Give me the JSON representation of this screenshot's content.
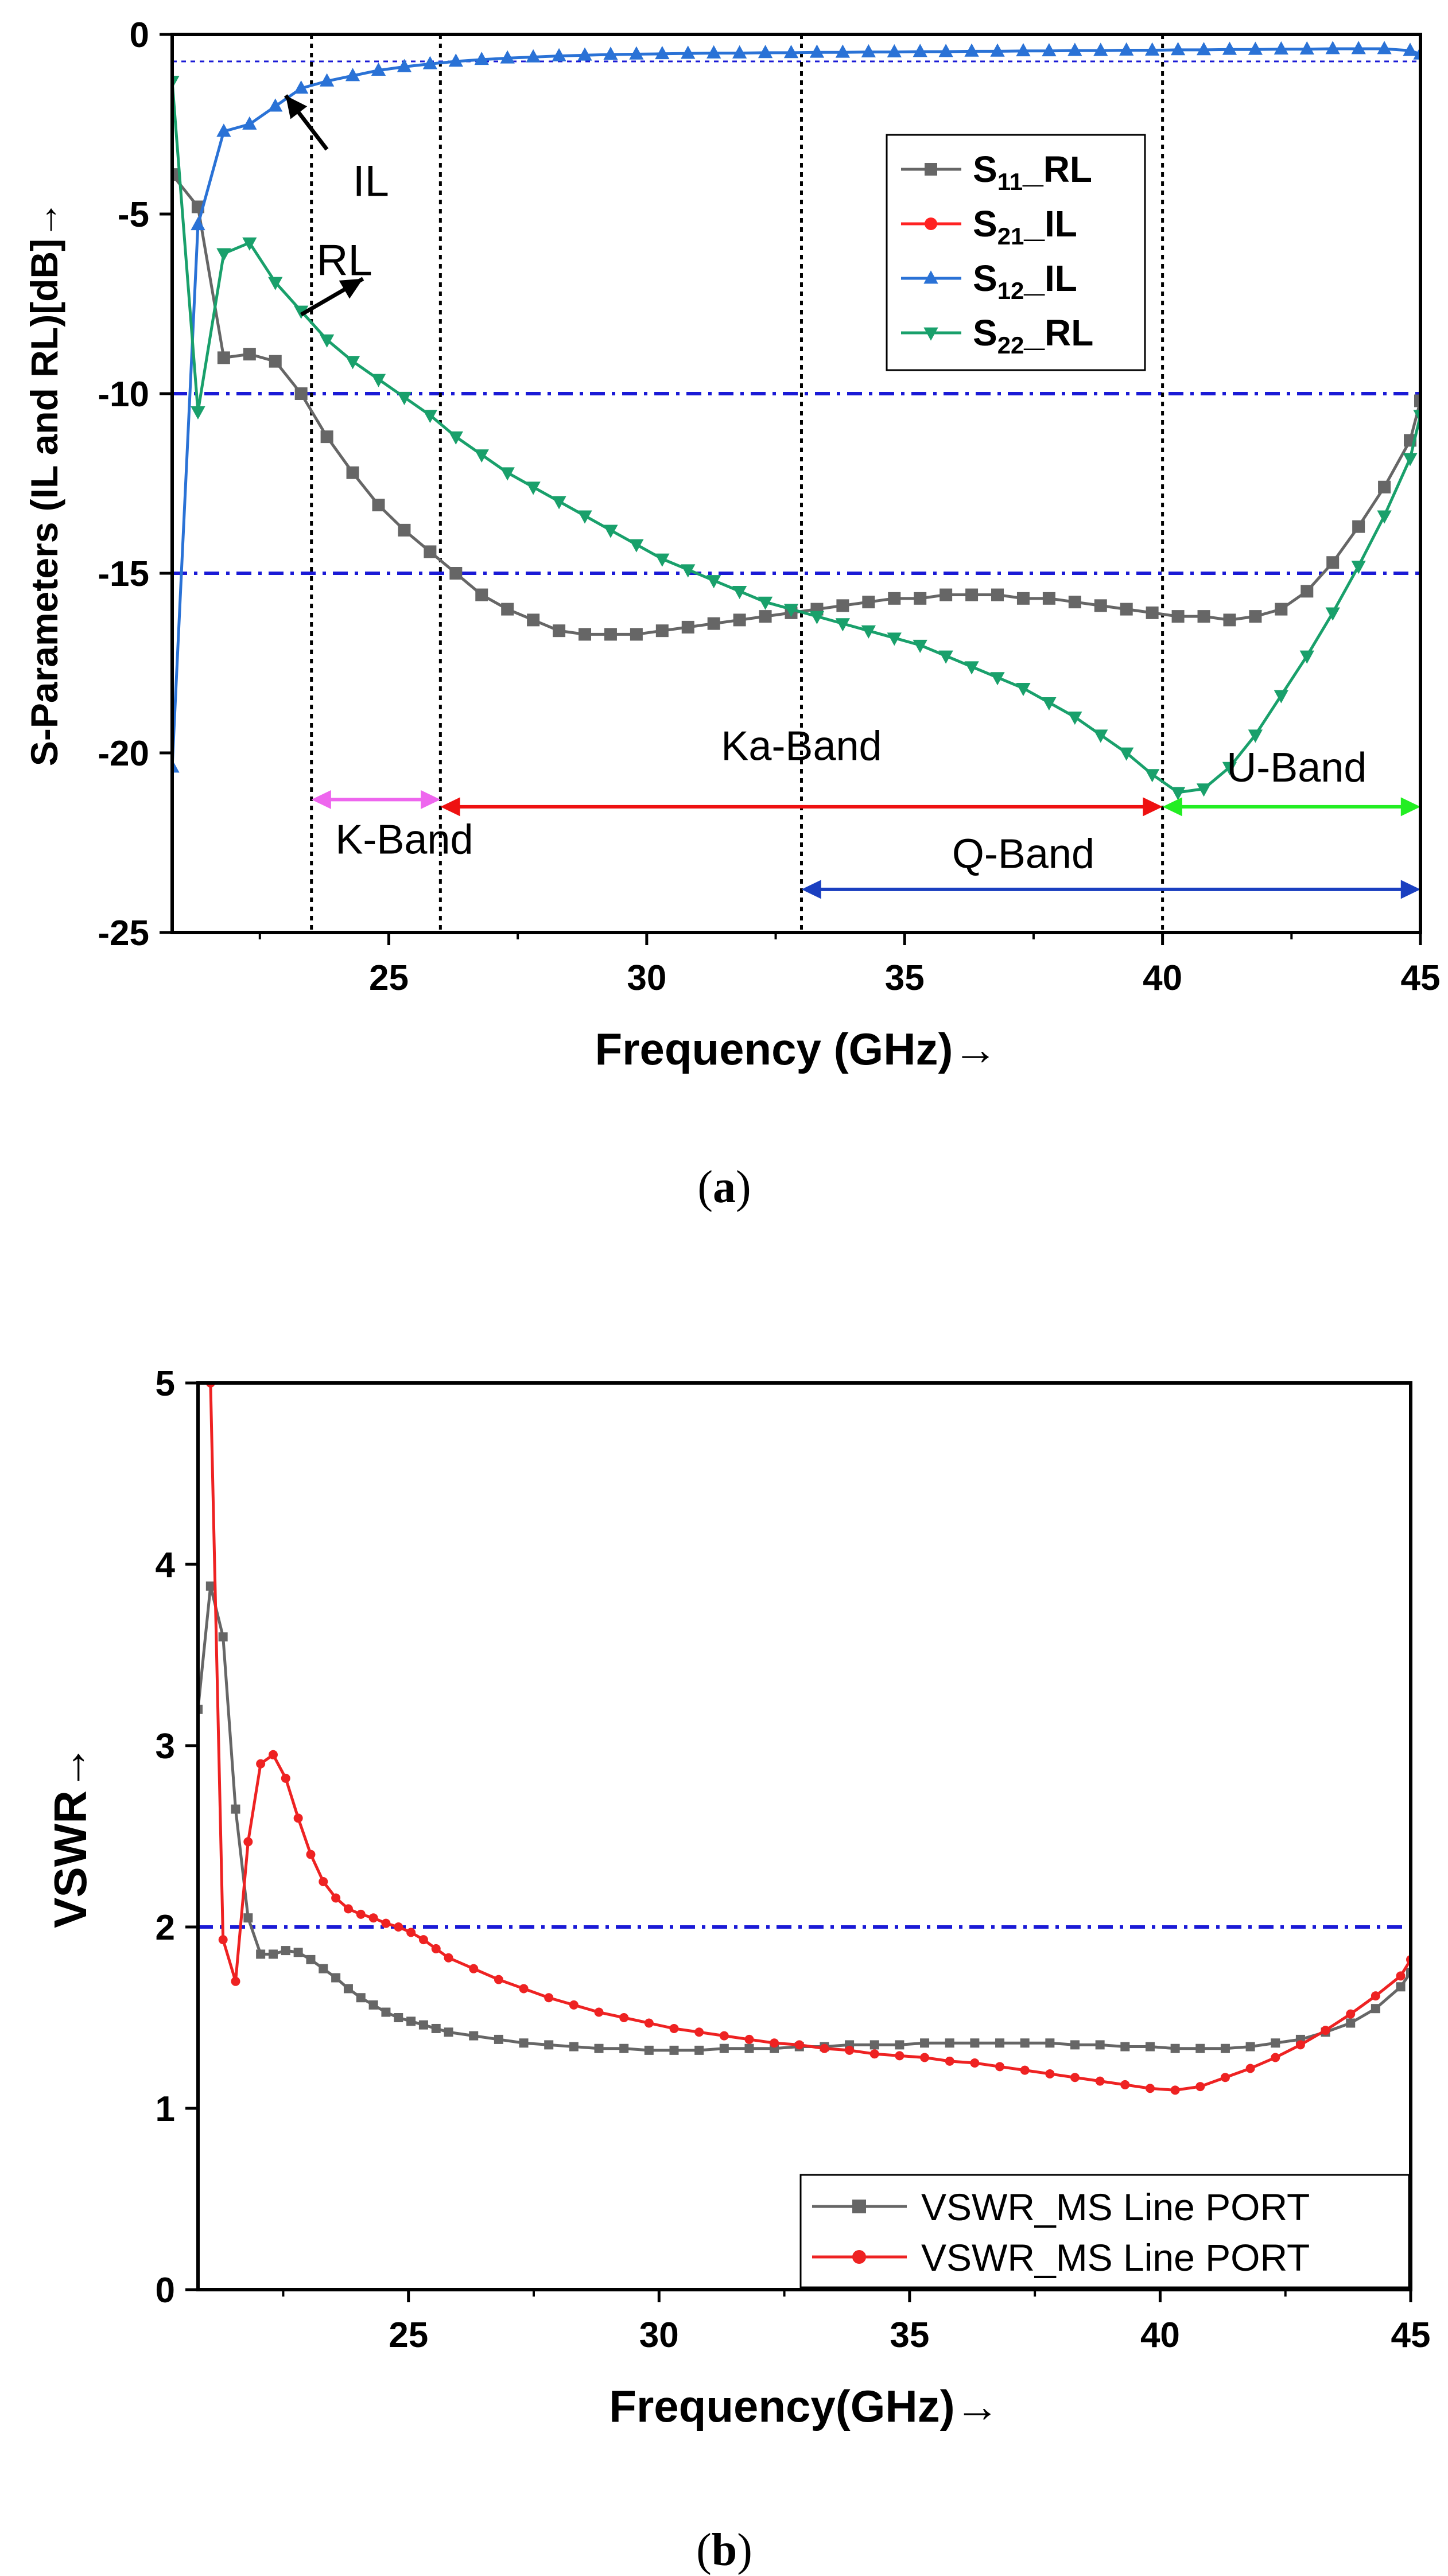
{
  "chart_data": [
    {
      "id": "a",
      "type": "line",
      "caption_open": "(",
      "caption": "a",
      "caption_close": ")",
      "xlabel": "Frequency (GHz)→",
      "ylabel": "S-Parameters (IL and RL)[dB]→",
      "xlim": [
        20.8,
        45
      ],
      "ylim": [
        -25,
        0
      ],
      "xticks": [
        25,
        30,
        35,
        40,
        45
      ],
      "yticks": [
        0,
        -5,
        -10,
        -15,
        -20,
        -25
      ],
      "xtick_labels": [
        "25",
        "30",
        "35",
        "40",
        "45"
      ],
      "ytick_labels": [
        "0",
        "-5",
        "-10",
        "-15",
        "-20",
        "-25"
      ],
      "series": [
        {
          "name": "S11_RL",
          "label_main": "S",
          "label_sub": "11",
          "label_tail": "_RL",
          "color": "#666666",
          "marker": "square",
          "x": [
            20.8,
            21.3,
            21.8,
            22.3,
            22.8,
            23.3,
            23.8,
            24.3,
            24.8,
            25.3,
            25.8,
            26.3,
            26.8,
            27.3,
            27.8,
            28.3,
            28.8,
            29.3,
            29.8,
            30.3,
            30.8,
            31.3,
            31.8,
            32.3,
            32.8,
            33.3,
            33.8,
            34.3,
            34.8,
            35.3,
            35.8,
            36.3,
            36.8,
            37.3,
            37.8,
            38.3,
            38.8,
            39.3,
            39.8,
            40.3,
            40.8,
            41.3,
            41.8,
            42.3,
            42.8,
            43.3,
            43.8,
            44.3,
            44.8,
            45.0
          ],
          "y": [
            -3.9,
            -4.8,
            -9.0,
            -8.9,
            -9.1,
            -10.0,
            -11.2,
            -12.2,
            -13.1,
            -13.8,
            -14.4,
            -15.0,
            -15.6,
            -16.0,
            -16.3,
            -16.6,
            -16.7,
            -16.7,
            -16.7,
            -16.6,
            -16.5,
            -16.4,
            -16.3,
            -16.2,
            -16.1,
            -16.0,
            -15.9,
            -15.8,
            -15.7,
            -15.7,
            -15.6,
            -15.6,
            -15.6,
            -15.7,
            -15.7,
            -15.8,
            -15.9,
            -16.0,
            -16.1,
            -16.2,
            -16.2,
            -16.3,
            -16.2,
            -16.0,
            -15.5,
            -14.7,
            -13.7,
            -12.6,
            -11.3,
            -10.2
          ]
        },
        {
          "name": "S21_IL",
          "label_main": "S",
          "label_sub": "21",
          "label_tail": "_IL",
          "color": "#ff2222",
          "marker": "circle",
          "x": [],
          "y": []
        },
        {
          "name": "S12_IL",
          "label_main": "S",
          "label_sub": "12",
          "label_tail": "_IL",
          "color": "#2a72d6",
          "marker": "triangle-up",
          "x": [
            20.8,
            21.3,
            21.8,
            22.3,
            22.8,
            23.3,
            23.8,
            24.3,
            24.8,
            25.3,
            25.8,
            26.3,
            26.8,
            27.3,
            27.8,
            28.3,
            28.8,
            29.3,
            29.8,
            30.3,
            30.8,
            31.3,
            31.8,
            32.3,
            32.8,
            33.3,
            33.8,
            34.3,
            34.8,
            35.3,
            35.8,
            36.3,
            36.8,
            37.3,
            37.8,
            38.3,
            38.8,
            39.3,
            39.8,
            40.3,
            40.8,
            41.3,
            41.8,
            42.3,
            42.8,
            43.3,
            43.8,
            44.3,
            44.8,
            45.0
          ],
          "y": [
            -20.4,
            -5.3,
            -2.7,
            -2.5,
            -2.0,
            -1.5,
            -1.3,
            -1.15,
            -1.0,
            -0.9,
            -0.82,
            -0.75,
            -0.7,
            -0.66,
            -0.63,
            -0.6,
            -0.58,
            -0.56,
            -0.55,
            -0.54,
            -0.53,
            -0.52,
            -0.52,
            -0.51,
            -0.51,
            -0.5,
            -0.5,
            -0.49,
            -0.49,
            -0.48,
            -0.48,
            -0.47,
            -0.47,
            -0.46,
            -0.46,
            -0.45,
            -0.45,
            -0.44,
            -0.44,
            -0.43,
            -0.43,
            -0.42,
            -0.42,
            -0.41,
            -0.41,
            -0.4,
            -0.4,
            -0.4,
            -0.45,
            -0.55
          ]
        },
        {
          "name": "S22_RL",
          "label_main": "S",
          "label_sub": "22",
          "label_tail": "_RL",
          "color": "#19a06b",
          "marker": "triangle-down",
          "x": [
            20.8,
            21.3,
            21.8,
            22.3,
            22.8,
            23.3,
            23.8,
            24.3,
            24.8,
            25.3,
            25.8,
            26.3,
            26.8,
            27.3,
            27.8,
            28.3,
            28.8,
            29.3,
            29.8,
            30.3,
            30.8,
            31.3,
            31.8,
            32.3,
            32.8,
            33.3,
            33.8,
            34.3,
            34.8,
            35.3,
            35.8,
            36.3,
            36.8,
            37.3,
            37.8,
            38.3,
            38.8,
            39.3,
            39.8,
            40.3,
            40.8,
            41.3,
            41.8,
            42.3,
            42.8,
            43.3,
            43.8,
            44.3,
            44.8,
            45.0
          ],
          "y": [
            -1.3,
            -10.5,
            -6.1,
            -5.8,
            -6.9,
            -7.7,
            -8.5,
            -9.1,
            -9.6,
            -10.1,
            -10.6,
            -11.2,
            -11.7,
            -12.2,
            -12.6,
            -13.0,
            -13.4,
            -13.8,
            -14.2,
            -14.6,
            -14.9,
            -15.2,
            -15.5,
            -15.8,
            -16.0,
            -16.2,
            -16.4,
            -16.6,
            -16.8,
            -17.0,
            -17.3,
            -17.6,
            -17.9,
            -18.2,
            -18.6,
            -19.0,
            -19.5,
            -20.0,
            -20.6,
            -21.1,
            -21.0,
            -20.4,
            -19.5,
            -18.4,
            -17.3,
            -16.1,
            -14.8,
            -13.4,
            -11.8,
            -10.6
          ]
        }
      ],
      "reference_lines": [
        {
          "y": -10,
          "color": "#1a1ad6",
          "style": "dash-dot"
        },
        {
          "y": -15,
          "color": "#1a1ad6",
          "style": "dash-dot"
        },
        {
          "y": -0.75,
          "color": "#1a1ad6",
          "style": "dotted"
        }
      ],
      "vertical_lines": [
        {
          "x": 23.5,
          "color": "#000000",
          "style": "dotted"
        },
        {
          "x": 26,
          "color": "#000000",
          "style": "dotted"
        },
        {
          "x": 33,
          "color": "#000000",
          "style": "dotted"
        },
        {
          "x": 40,
          "color": "#000000",
          "style": "dotted"
        }
      ],
      "bands": [
        {
          "name": "K-Band",
          "from": 23.5,
          "to": 26,
          "y": -21.3,
          "color": "#ee66ee",
          "label_x": 25.3,
          "label_y": -22.8
        },
        {
          "name": "Ka-Band",
          "from": 26,
          "to": 40,
          "y": -21.5,
          "color": "#ee1111",
          "label_x": 33,
          "label_y": -20.2
        },
        {
          "name": "U-Band",
          "from": 40,
          "to": 45,
          "y": -21.5,
          "color": "#22ee22",
          "label_x": 42.6,
          "label_y": -20.8
        },
        {
          "name": "Q-Band",
          "from": 33,
          "to": 45,
          "y": -23.8,
          "color": "#1a3fc0",
          "label_x": 37.3,
          "label_y": -23.2
        }
      ],
      "annotations": [
        {
          "text": "IL",
          "x": 24.3,
          "y": -4.5,
          "arrow_from_x": 23.8,
          "arrow_from_y": -3.2,
          "arrow_to_x": 23.0,
          "arrow_to_y": -1.7
        },
        {
          "text": "RL",
          "x": 23.6,
          "y": -6.7,
          "arrow_from_x": 23.3,
          "arrow_from_y": -7.8,
          "arrow_to_x": 24.5,
          "arrow_to_y": -6.8
        }
      ],
      "legend_position": "upper-right"
    },
    {
      "id": "b",
      "type": "line",
      "caption_open": "(",
      "caption": "b",
      "caption_close": ")",
      "xlabel": "Frequency(GHz)→",
      "ylabel": "VSWR→",
      "xlim": [
        20.8,
        45
      ],
      "ylim": [
        0,
        5
      ],
      "xticks": [
        25,
        30,
        35,
        40,
        45
      ],
      "yticks": [
        0,
        1,
        2,
        3,
        4,
        5
      ],
      "xtick_labels": [
        "25",
        "30",
        "35",
        "40",
        "45"
      ],
      "ytick_labels": [
        "0",
        "1",
        "2",
        "3",
        "4",
        "5"
      ],
      "series": [
        {
          "name": "VSWR_MS Line PORT",
          "color": "#666666",
          "marker": "square",
          "x": [
            20.8,
            21.05,
            21.3,
            21.55,
            21.8,
            22.05,
            22.3,
            22.55,
            22.8,
            23.05,
            23.3,
            23.55,
            23.8,
            24.05,
            24.3,
            24.55,
            24.8,
            25.05,
            25.3,
            25.55,
            25.8,
            26.3,
            26.8,
            27.3,
            27.8,
            28.3,
            28.8,
            29.3,
            29.8,
            30.3,
            30.8,
            31.3,
            31.8,
            32.3,
            32.8,
            33.3,
            33.8,
            34.3,
            34.8,
            35.3,
            35.8,
            36.3,
            36.8,
            37.3,
            37.8,
            38.3,
            38.8,
            39.3,
            39.8,
            40.3,
            40.8,
            41.3,
            41.8,
            42.3,
            42.8,
            43.3,
            43.8,
            44.3,
            44.8,
            45.0
          ],
          "y": [
            3.2,
            3.88,
            3.6,
            2.65,
            2.05,
            1.85,
            1.85,
            1.87,
            1.86,
            1.82,
            1.77,
            1.72,
            1.66,
            1.61,
            1.57,
            1.53,
            1.5,
            1.48,
            1.46,
            1.44,
            1.42,
            1.4,
            1.38,
            1.36,
            1.35,
            1.34,
            1.33,
            1.33,
            1.32,
            1.32,
            1.32,
            1.33,
            1.33,
            1.33,
            1.34,
            1.34,
            1.35,
            1.35,
            1.35,
            1.36,
            1.36,
            1.36,
            1.36,
            1.36,
            1.36,
            1.35,
            1.35,
            1.34,
            1.34,
            1.33,
            1.33,
            1.33,
            1.34,
            1.36,
            1.38,
            1.42,
            1.47,
            1.55,
            1.67,
            1.75
          ]
        },
        {
          "name": "VSWR_MS Line PORT",
          "color": "#ee2222",
          "marker": "circle",
          "x": [
            21.05,
            21.3,
            21.55,
            21.8,
            22.05,
            22.3,
            22.55,
            22.8,
            23.05,
            23.3,
            23.55,
            23.8,
            24.05,
            24.3,
            24.55,
            24.8,
            25.05,
            25.3,
            25.55,
            25.8,
            26.3,
            26.8,
            27.3,
            27.8,
            28.3,
            28.8,
            29.3,
            29.8,
            30.3,
            30.8,
            31.3,
            31.8,
            32.3,
            32.8,
            33.3,
            33.8,
            34.3,
            34.8,
            35.3,
            35.8,
            36.3,
            36.8,
            37.3,
            37.8,
            38.3,
            38.8,
            39.3,
            39.8,
            40.3,
            40.8,
            41.3,
            41.8,
            42.3,
            42.8,
            43.3,
            43.8,
            44.3,
            44.8,
            45.0
          ],
          "y": [
            5.0,
            1.93,
            1.7,
            2.47,
            2.9,
            2.95,
            2.82,
            2.6,
            2.4,
            2.25,
            2.16,
            2.1,
            2.07,
            2.05,
            2.02,
            2.0,
            1.97,
            1.93,
            1.88,
            1.83,
            1.77,
            1.71,
            1.66,
            1.61,
            1.57,
            1.53,
            1.5,
            1.47,
            1.44,
            1.42,
            1.4,
            1.38,
            1.36,
            1.35,
            1.33,
            1.32,
            1.3,
            1.29,
            1.28,
            1.26,
            1.25,
            1.23,
            1.21,
            1.19,
            1.17,
            1.15,
            1.13,
            1.11,
            1.1,
            1.12,
            1.17,
            1.22,
            1.28,
            1.35,
            1.43,
            1.52,
            1.62,
            1.73,
            1.82
          ]
        }
      ],
      "reference_lines": [
        {
          "y": 2,
          "color": "#1a1ad6",
          "style": "dash-dot"
        }
      ],
      "legend_position": "lower-right"
    }
  ]
}
